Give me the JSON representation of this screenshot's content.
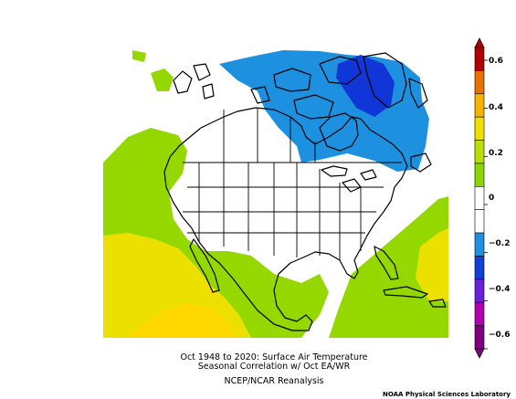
{
  "title": {
    "line1": "Oct 1948 to 2020: Surface Air Temperature",
    "line2": "Seasonal Correlation w/ Oct EA/WR",
    "line3": "NCEP/NCAR Reanalysis"
  },
  "credit": "NOAA Physical Sciences Laboratory",
  "colorbar": {
    "levels": [
      {
        "label": "0.6",
        "color": "#8b0000"
      },
      {
        "label": "0.4",
        "color": "#f0a000"
      },
      {
        "label": "0.2",
        "color": "#f0e000"
      },
      {
        "label": "0",
        "color": "#ffffff"
      },
      {
        "label": "−0.2",
        "color": "#1c8ee0"
      },
      {
        "label": "−0.4",
        "color": "#6a1fd8"
      },
      {
        "label": "−0.6",
        "color": "#7a0a7a"
      }
    ],
    "bands": [
      "#b00000",
      "#e87000",
      "#f5b400",
      "#f0e000",
      "#b8e000",
      "#88d800",
      "#ffffff",
      "#ffffff",
      "#1e90e0",
      "#1040d8",
      "#6a20d8",
      "#b000b0",
      "#800080"
    ]
  },
  "regions": {
    "positive_color": "#94d800",
    "yellow_color": "#ece000",
    "strong_yellow_color": "#ffd800",
    "negative_color": "#1e90e0",
    "strong_negative_color": "#1036d8"
  }
}
